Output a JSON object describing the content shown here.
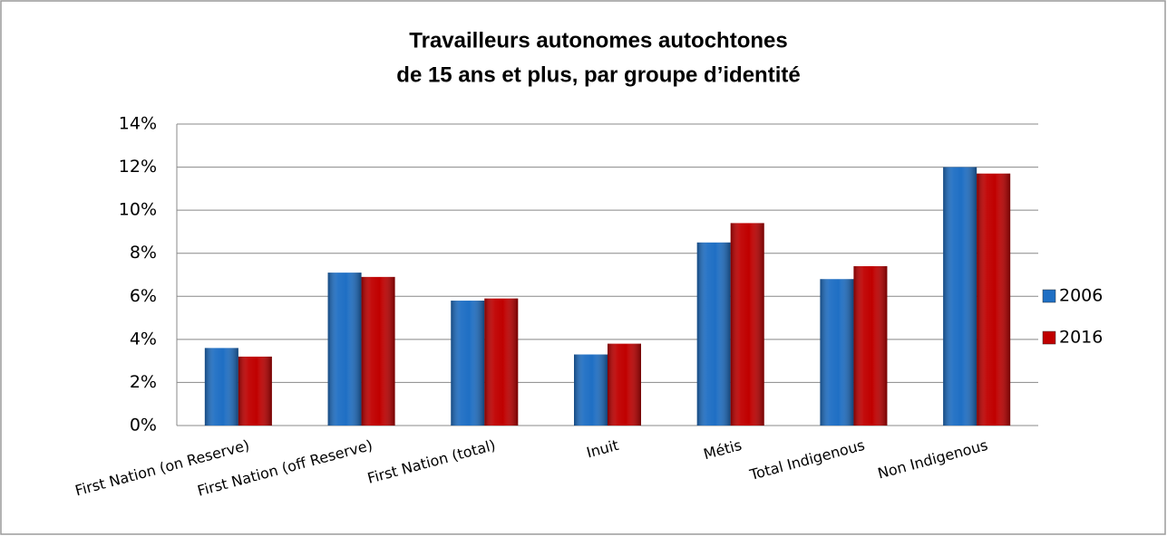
{
  "chart_data": {
    "type": "bar",
    "title": [
      "Travailleurs autonomes autochtones",
      "de 15 ans et plus, par groupe d’identité"
    ],
    "categories": [
      "First Nation (on Reserve)",
      "First Nation (off Reserve)",
      "First Nation (total)",
      "Inuit",
      "Métis",
      "Total Indigenous",
      "Non Indigenous"
    ],
    "series": [
      {
        "name": "2006",
        "color": "#1f6fc4",
        "values": [
          3.6,
          7.1,
          5.8,
          3.3,
          8.5,
          6.8,
          12.0
        ]
      },
      {
        "name": "2016",
        "color": "#c00000",
        "values": [
          3.2,
          6.9,
          5.9,
          3.8,
          9.4,
          7.4,
          11.7
        ]
      }
    ],
    "ylim": [
      0,
      14
    ],
    "yticks": [
      {
        "value": 0,
        "label": "0%"
      },
      {
        "value": 2,
        "label": "2%"
      },
      {
        "value": 4,
        "label": "4%"
      },
      {
        "value": 6,
        "label": "6%"
      },
      {
        "value": 8,
        "label": "8%"
      },
      {
        "value": 10,
        "label": "10%"
      },
      {
        "value": 12,
        "label": "12%"
      },
      {
        "value": 14,
        "label": "14%"
      }
    ],
    "grid": true,
    "legend": "right"
  }
}
